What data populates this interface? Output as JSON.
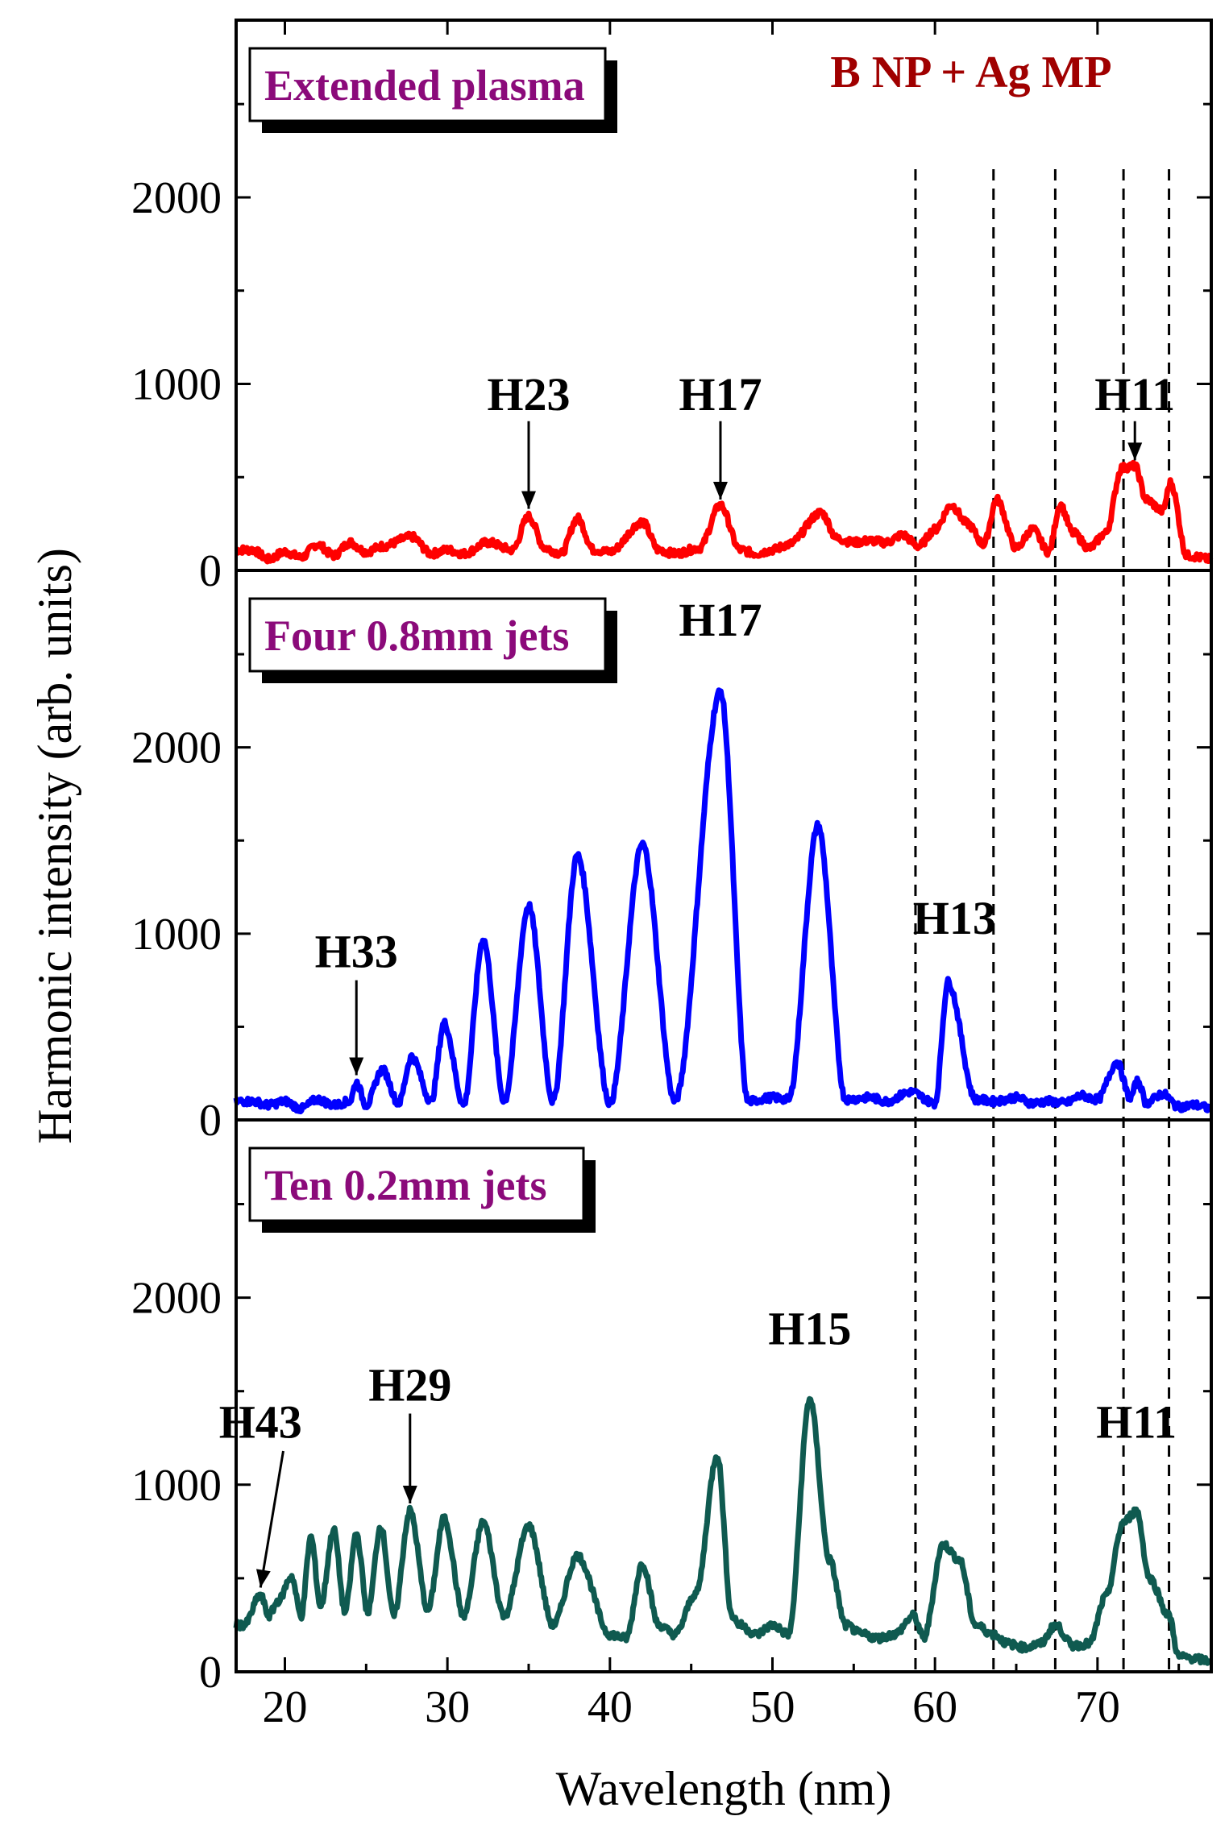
{
  "chart_data": {
    "type": "line",
    "title": "B NP + Ag MP",
    "colors": {
      "title": "#a00000",
      "panel_label": "#8b0a7a"
    },
    "xlabel": "Wavelength (nm)",
    "ylabel": "Harmonic intensity (arb. units)",
    "xlim": [
      17,
      77
    ],
    "x_ticks": [
      20,
      30,
      40,
      50,
      60,
      70
    ],
    "y_ticks": [
      0,
      1000,
      2000
    ],
    "ylim": [
      0,
      2950
    ],
    "dashed_lines_x": [
      58.8,
      63.6,
      67.4,
      71.6,
      74.4
    ],
    "panels": [
      {
        "label": "Extended plasma",
        "color": "#ff0000",
        "peaks": [
          [
            18,
            110
          ],
          [
            19,
            60
          ],
          [
            20,
            100
          ],
          [
            21,
            70
          ],
          [
            22,
            140
          ],
          [
            23,
            80
          ],
          [
            24,
            150
          ],
          [
            25,
            100
          ],
          [
            26,
            130
          ],
          [
            27.8,
            180
          ],
          [
            29,
            90
          ],
          [
            30,
            110
          ],
          [
            31,
            90
          ],
          [
            32.5,
            150
          ],
          [
            34,
            110
          ],
          [
            35,
            290
          ],
          [
            36,
            120
          ],
          [
            37,
            90
          ],
          [
            38,
            280
          ],
          [
            39,
            110
          ],
          [
            40,
            100
          ],
          [
            42,
            260
          ],
          [
            43,
            110
          ],
          [
            44,
            90
          ],
          [
            45.5,
            120
          ],
          [
            46.8,
            350
          ],
          [
            48,
            110
          ],
          [
            49,
            90
          ],
          [
            50,
            110
          ],
          [
            51,
            140
          ],
          [
            53,
            310
          ],
          [
            54,
            170
          ],
          [
            55,
            150
          ],
          [
            56,
            160
          ],
          [
            57,
            150
          ],
          [
            58,
            190
          ],
          [
            59,
            130
          ],
          [
            60,
            220
          ],
          [
            61,
            350
          ],
          [
            62,
            250
          ],
          [
            63,
            140
          ],
          [
            63.8,
            380
          ],
          [
            65,
            120
          ],
          [
            66,
            220
          ],
          [
            67,
            100
          ],
          [
            67.7,
            350
          ],
          [
            68.5,
            200
          ],
          [
            69.5,
            120
          ],
          [
            70.5,
            200
          ],
          [
            71.5,
            550
          ],
          [
            72.3,
            560
          ],
          [
            73,
            380
          ],
          [
            74,
            320
          ],
          [
            74.5,
            470
          ],
          [
            75.5,
            80
          ],
          [
            77,
            60
          ]
        ],
        "annotations": [
          {
            "text": "H23",
            "x": 35.0,
            "y": 860
          },
          {
            "text": "H17",
            "x": 46.8,
            "y": 860
          },
          {
            "text": "H11",
            "x": 72.3,
            "y": 860
          }
        ]
      },
      {
        "label": "Four 0.8mm jets",
        "color": "#0000ff",
        "peaks": [
          [
            18,
            100
          ],
          [
            19,
            80
          ],
          [
            20,
            100
          ],
          [
            21,
            60
          ],
          [
            22,
            110
          ],
          [
            23,
            80
          ],
          [
            24,
            100
          ],
          [
            24.4,
            200
          ],
          [
            25,
            80
          ],
          [
            26,
            270
          ],
          [
            27,
            90
          ],
          [
            27.8,
            340
          ],
          [
            29,
            100
          ],
          [
            29.8,
            520
          ],
          [
            31,
            80
          ],
          [
            32.2,
            970
          ],
          [
            33.5,
            100
          ],
          [
            35,
            1150
          ],
          [
            36.5,
            100
          ],
          [
            38,
            1420
          ],
          [
            40,
            90
          ],
          [
            42,
            1480
          ],
          [
            44,
            100
          ],
          [
            46.8,
            2300
          ],
          [
            48.5,
            100
          ],
          [
            50,
            120
          ],
          [
            51,
            110
          ],
          [
            52.8,
            1580
          ],
          [
            54.5,
            110
          ],
          [
            56,
            120
          ],
          [
            57,
            100
          ],
          [
            58.5,
            150
          ],
          [
            60,
            90
          ],
          [
            60.8,
            740
          ],
          [
            62.5,
            110
          ],
          [
            63.6,
            100
          ],
          [
            65,
            120
          ],
          [
            66,
            90
          ],
          [
            67,
            100
          ],
          [
            68,
            90
          ],
          [
            69,
            130
          ],
          [
            70,
            110
          ],
          [
            71.2,
            310
          ],
          [
            72,
            120
          ],
          [
            72.5,
            210
          ],
          [
            73,
            90
          ],
          [
            74,
            140
          ],
          [
            75,
            70
          ],
          [
            76,
            80
          ],
          [
            77,
            60
          ]
        ],
        "annotations": [
          {
            "text": "H33",
            "x": 24.4,
            "y": 820
          },
          {
            "text": "H17",
            "x": 46.8,
            "y": 2600
          },
          {
            "text": "H13",
            "x": 61.2,
            "y": 1000
          }
        ]
      },
      {
        "label": "Ten 0.2mm jets",
        "color": "#0f5a50",
        "peaks": [
          [
            17.5,
            250
          ],
          [
            18.5,
            410
          ],
          [
            19,
            300
          ],
          [
            19.6,
            380
          ],
          [
            20.4,
            510
          ],
          [
            21,
            300
          ],
          [
            21.6,
            720
          ],
          [
            22.2,
            350
          ],
          [
            23,
            760
          ],
          [
            23.7,
            320
          ],
          [
            24.4,
            740
          ],
          [
            25.1,
            320
          ],
          [
            25.9,
            780
          ],
          [
            26.7,
            300
          ],
          [
            27.7,
            860
          ],
          [
            28.8,
            330
          ],
          [
            29.8,
            820
          ],
          [
            31,
            300
          ],
          [
            32.2,
            800
          ],
          [
            33.5,
            300
          ],
          [
            35,
            780
          ],
          [
            36.5,
            250
          ],
          [
            38,
            620
          ],
          [
            40,
            200
          ],
          [
            41,
            180
          ],
          [
            42,
            580
          ],
          [
            43,
            250
          ],
          [
            44,
            200
          ],
          [
            45.3,
            420
          ],
          [
            46.6,
            1160
          ],
          [
            47.5,
            300
          ],
          [
            48,
            250
          ],
          [
            49,
            200
          ],
          [
            50,
            250
          ],
          [
            51,
            200
          ],
          [
            52.3,
            1460
          ],
          [
            53.5,
            600
          ],
          [
            54.5,
            250
          ],
          [
            55.5,
            200
          ],
          [
            56.5,
            180
          ],
          [
            57.5,
            200
          ],
          [
            58.7,
            300
          ],
          [
            59.3,
            180
          ],
          [
            60.5,
            680
          ],
          [
            61.5,
            600
          ],
          [
            62.5,
            250
          ],
          [
            63.6,
            200
          ],
          [
            64.5,
            150
          ],
          [
            65.5,
            130
          ],
          [
            66.5,
            150
          ],
          [
            67.4,
            250
          ],
          [
            68.5,
            140
          ],
          [
            69.5,
            150
          ],
          [
            70.5,
            400
          ],
          [
            71.6,
            800
          ],
          [
            72.4,
            860
          ],
          [
            73.2,
            500
          ],
          [
            74.4,
            300
          ],
          [
            75,
            80
          ],
          [
            77,
            60
          ]
        ],
        "annotations": [
          {
            "text": "H43",
            "x": 18.5,
            "y": 1250
          },
          {
            "text": "H29",
            "x": 27.7,
            "y": 1450
          },
          {
            "text": "H15",
            "x": 52.3,
            "y": 1750
          },
          {
            "text": "H11",
            "x": 72.4,
            "y": 1250
          }
        ]
      }
    ]
  }
}
